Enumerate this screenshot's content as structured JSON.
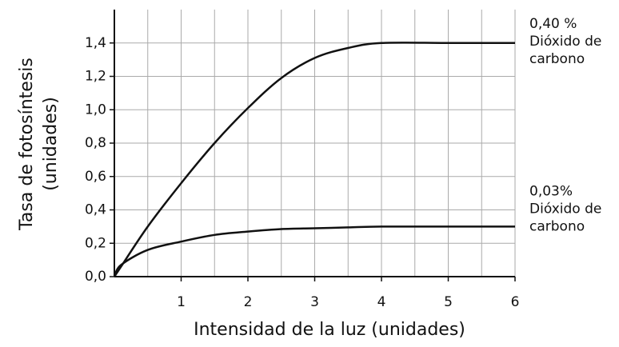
{
  "chart_data": {
    "type": "line",
    "y_title_lines": [
      "Tasa de fotosíntesis",
      "(unidades)"
    ],
    "x_title": "Intensidad de la luz (unidades)",
    "x": [
      0,
      0.1,
      0.5,
      1,
      1.5,
      2,
      2.5,
      3,
      3.5,
      4,
      5,
      6
    ],
    "series": [
      {
        "label_lines": [
          "0,40 %",
          "Dióxido de",
          "carbono"
        ],
        "color": "#111111",
        "values": [
          0,
          0.06,
          0.3,
          0.56,
          0.8,
          1.01,
          1.19,
          1.31,
          1.37,
          1.4,
          1.4,
          1.4
        ]
      },
      {
        "label_lines": [
          "0,03%",
          "Dióxido de",
          "carbono"
        ],
        "color": "#111111",
        "values": [
          0,
          0.07,
          0.16,
          0.21,
          0.25,
          0.27,
          0.285,
          0.29,
          0.295,
          0.3,
          0.3,
          0.3
        ]
      }
    ],
    "xlim": [
      0,
      6
    ],
    "ylim": [
      0,
      1.6
    ],
    "xticks": [
      1,
      2,
      3,
      4,
      5,
      6
    ],
    "x_grid": [
      0.5,
      1,
      1.5,
      2,
      2.5,
      3,
      3.5,
      4,
      4.5,
      5,
      5.5,
      6
    ],
    "yticks": [
      {
        "value": 0,
        "label": "0,0"
      },
      {
        "value": 0.2,
        "label": "0,2"
      },
      {
        "value": 0.4,
        "label": "0,4"
      },
      {
        "value": 0.6,
        "label": "0,6"
      },
      {
        "value": 0.8,
        "label": "0,8"
      },
      {
        "value": 1.0,
        "label": "1,0"
      },
      {
        "value": 1.2,
        "label": "1,2"
      },
      {
        "value": 1.4,
        "label": "1,4"
      }
    ],
    "grid": true
  }
}
